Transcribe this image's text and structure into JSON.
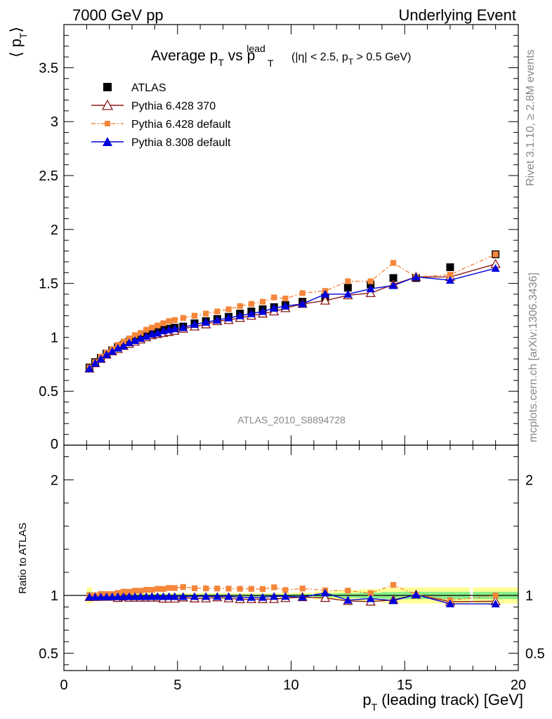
{
  "header": {
    "left": "7000 GeV pp",
    "right": "Underlying Event"
  },
  "side_labels": {
    "rivet": "Rivet 3.1.10, ≥ 2.8M events",
    "mcplots": "mcplots.cern.ch [arXiv:1306.3436]"
  },
  "watermark": "ATLAS_2010_S8894728",
  "title": {
    "main": "Average p",
    "sub_T": "T",
    "vs": " vs p",
    "sup_lead": "lead",
    "cuts_a": "(|η| < 2.5, p",
    "cuts_b": " > 0.5 GeV)"
  },
  "y_label": {
    "open": "⟨ p",
    "sub": "T",
    "close": "⟩"
  },
  "ratio_label": "Ratio to ATLAS",
  "x_label": {
    "p": "p",
    "sub": "T",
    "rest": " (leading track) [GeV]"
  },
  "legend": [
    {
      "name": "ATLAS",
      "color": "#000000",
      "marker": "square"
    },
    {
      "name": "Pythia 6.428 370",
      "color": "#8b1a1a",
      "marker": "open-triangle"
    },
    {
      "name": "Pythia 6.428 default",
      "color": "#f5863a",
      "marker": "small-square"
    },
    {
      "name": "Pythia 8.308 default",
      "color": "#0000dd",
      "marker": "triangle"
    }
  ],
  "chart_data": {
    "type": "scatter",
    "xlim": [
      0,
      20
    ],
    "main_ylim": [
      0,
      3.9
    ],
    "ratio_ylim": [
      0.35,
      2.3
    ],
    "main_yticks": [
      {
        "v": 0.5,
        "label": "0.5"
      },
      {
        "v": 1,
        "label": "1"
      },
      {
        "v": 1.5,
        "label": "1.5"
      },
      {
        "v": 2,
        "label": "2"
      },
      {
        "v": 2.5,
        "label": "2.5"
      },
      {
        "v": 3,
        "label": "3"
      },
      {
        "v": 3.5,
        "label": "3.5"
      }
    ],
    "ratio_yticks": [
      {
        "v": 0.5,
        "label": "0.5"
      },
      {
        "v": 1,
        "label": "1"
      },
      {
        "v": 2,
        "label": "2"
      }
    ],
    "xticks": [
      {
        "v": 0,
        "label": "0"
      },
      {
        "v": 5,
        "label": "5"
      },
      {
        "v": 10,
        "label": "10"
      },
      {
        "v": 15,
        "label": "15"
      },
      {
        "v": 20,
        "label": "20"
      }
    ],
    "x": [
      1.125,
      1.375,
      1.625,
      1.875,
      2.125,
      2.375,
      2.625,
      2.875,
      3.125,
      3.375,
      3.625,
      3.875,
      4.125,
      4.375,
      4.625,
      4.875,
      5.25,
      5.75,
      6.25,
      6.75,
      7.25,
      7.75,
      8.25,
      8.75,
      9.25,
      9.75,
      10.5,
      11.5,
      12.5,
      13.5,
      14.5,
      15.5,
      17.0,
      19.0
    ],
    "series": [
      {
        "name": "ATLAS",
        "values": [
          0.72,
          0.77,
          0.81,
          0.85,
          0.88,
          0.91,
          0.93,
          0.96,
          0.98,
          1.0,
          1.02,
          1.04,
          1.05,
          1.07,
          1.08,
          1.09,
          1.1,
          1.13,
          1.15,
          1.17,
          1.19,
          1.22,
          1.24,
          1.26,
          1.28,
          1.3,
          1.33,
          1.37,
          1.46,
          1.49,
          1.55,
          1.55,
          1.65,
          1.77
        ]
      },
      {
        "name": "Pythia 6.428 370",
        "values": [
          0.71,
          0.76,
          0.8,
          0.84,
          0.87,
          0.89,
          0.92,
          0.94,
          0.96,
          0.98,
          1.0,
          1.02,
          1.03,
          1.04,
          1.05,
          1.06,
          1.08,
          1.1,
          1.12,
          1.15,
          1.16,
          1.18,
          1.2,
          1.22,
          1.24,
          1.27,
          1.31,
          1.34,
          1.39,
          1.41,
          1.49,
          1.56,
          1.56,
          1.68
        ]
      },
      {
        "name": "Pythia 6.428 default",
        "values": [
          0.72,
          0.77,
          0.82,
          0.86,
          0.89,
          0.93,
          0.96,
          0.99,
          1.02,
          1.04,
          1.07,
          1.09,
          1.11,
          1.13,
          1.15,
          1.16,
          1.18,
          1.2,
          1.22,
          1.24,
          1.26,
          1.29,
          1.31,
          1.33,
          1.37,
          1.36,
          1.41,
          1.43,
          1.52,
          1.52,
          1.69,
          1.56,
          1.58,
          1.77
        ]
      },
      {
        "name": "Pythia 8.308 default",
        "values": [
          0.71,
          0.76,
          0.8,
          0.84,
          0.87,
          0.9,
          0.92,
          0.95,
          0.97,
          0.99,
          1.01,
          1.03,
          1.04,
          1.06,
          1.07,
          1.08,
          1.09,
          1.12,
          1.14,
          1.16,
          1.18,
          1.2,
          1.22,
          1.24,
          1.27,
          1.29,
          1.31,
          1.4,
          1.4,
          1.45,
          1.48,
          1.56,
          1.53,
          1.64
        ]
      }
    ]
  }
}
